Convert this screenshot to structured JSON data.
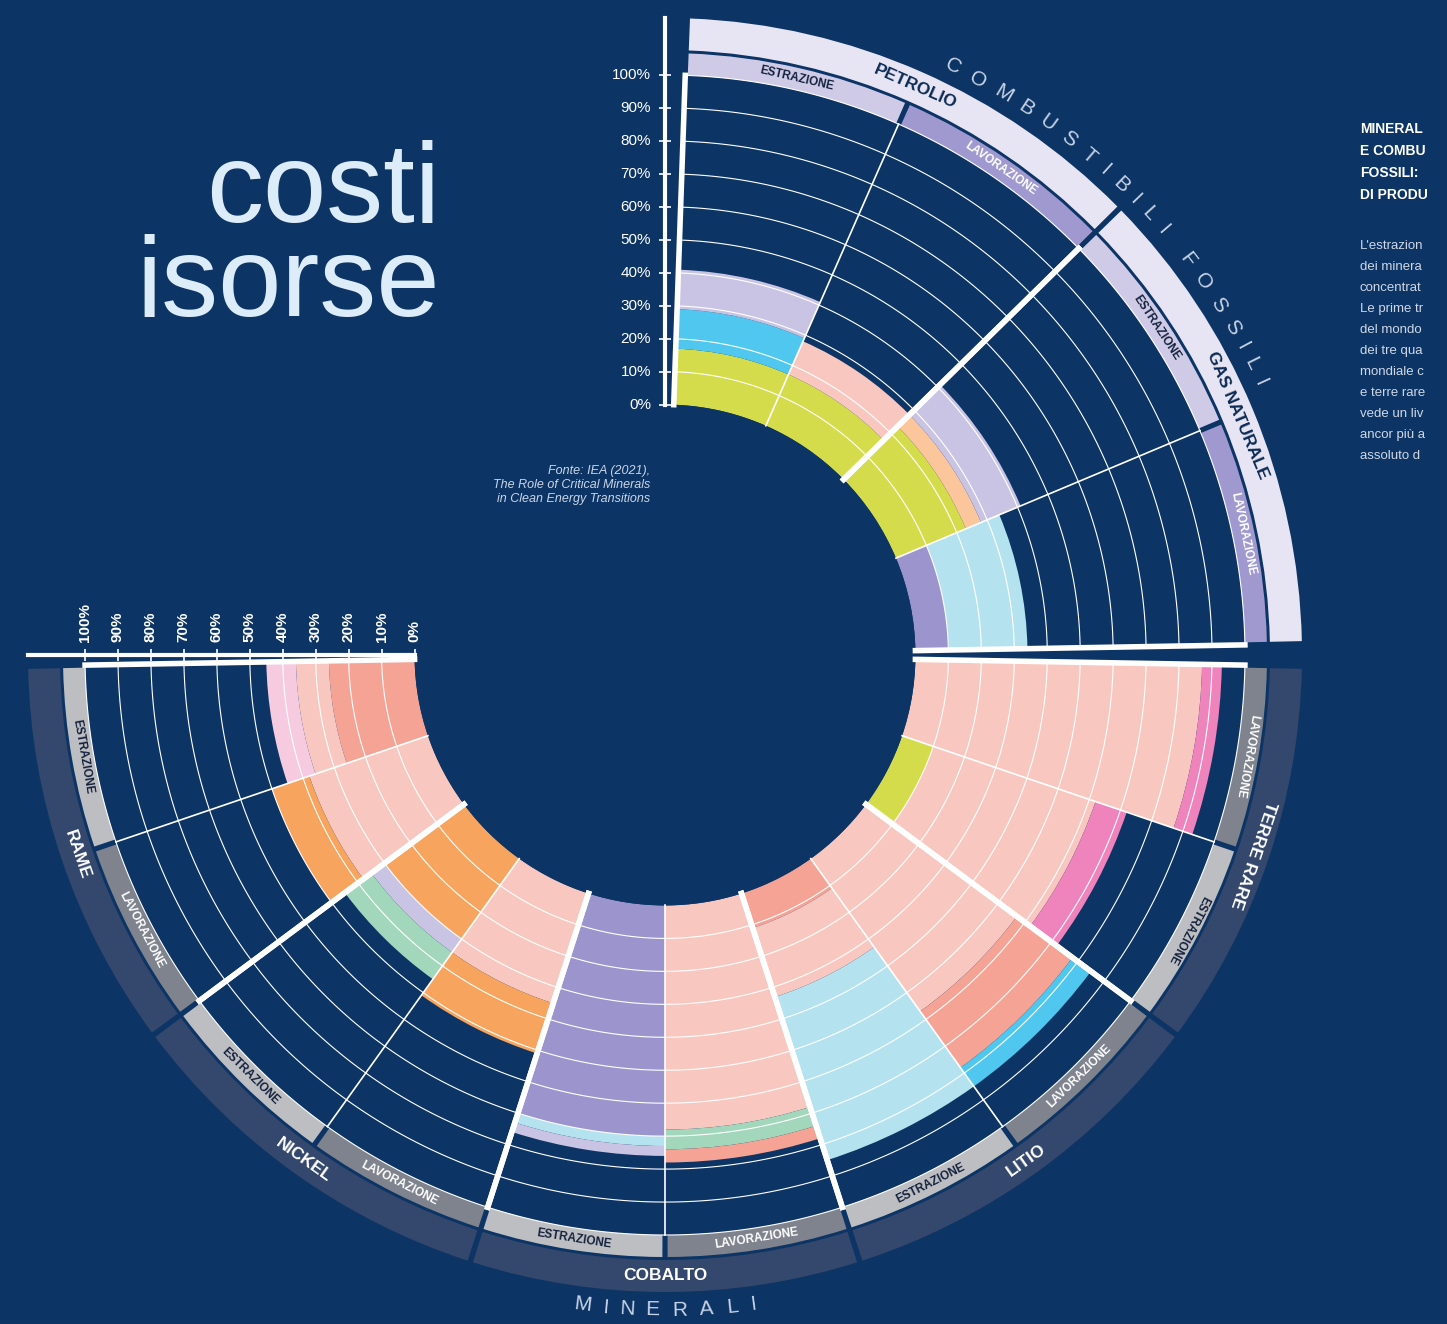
{
  "chart_data": {
    "type": "radial_bar",
    "title": "costi\nisorse",
    "source": "Fonte: IEA (2021),\nThe Role of Critical Minerals\nin Clean Energy Transitions",
    "stacked": true,
    "grid": true,
    "ylim": [
      0,
      100
    ],
    "yticks": [
      {
        "value": 0,
        "label": "0%"
      },
      {
        "value": 10,
        "label": "10%"
      },
      {
        "value": 20,
        "label": "20%"
      },
      {
        "value": 30,
        "label": "30%"
      },
      {
        "value": 40,
        "label": "40%"
      },
      {
        "value": 50,
        "label": "50%"
      },
      {
        "value": 60,
        "label": "60%"
      },
      {
        "value": 70,
        "label": "70%"
      },
      {
        "value": 80,
        "label": "80%"
      },
      {
        "value": 90,
        "label": "90%"
      },
      {
        "value": 100,
        "label": "100%"
      }
    ],
    "groups": [
      {
        "name": "COMBUSTIBILI FOSSILI",
        "resources": [
          {
            "name": "PETROLIO",
            "bars": [
              {
                "name": "ESTRAZIONE",
                "values": [
                  17,
                  12,
                  12
                ],
                "colors": [
                  "#d4dc4c",
                  "#4fc7ee",
                  "#c9c4e4"
                ]
              },
              {
                "name": "LAVORAZIONE",
                "values": [
                  17,
                  11
                ],
                "colors": [
                  "#d4dc4c",
                  "#f8c8c0"
                ]
              }
            ]
          },
          {
            "name": "GAS NATURALE",
            "bars": [
              {
                "name": "ESTRAZIONE",
                "values": [
                  23,
                  5,
                  13
                ],
                "colors": [
                  "#d4dc4c",
                  "#fbc69c",
                  "#c9c4e4"
                ]
              },
              {
                "name": "LAVORAZIONE",
                "values": [
                  10,
                  24
                ],
                "colors": [
                  "#9c95cd",
                  "#b5e2ef"
                ]
              }
            ]
          }
        ]
      },
      {
        "name": "MINERALI",
        "resources": [
          {
            "name": "TERRE RARE",
            "bars": [
              {
                "name": "LAVORAZIONE",
                "values": [
                  87,
                  6
                ],
                "colors": [
                  "#f8c8c0",
                  "#ef83bb"
                ]
              },
              {
                "name": "ESTRAZIONE",
                "values": [
                  10,
                  52,
                  10
                ],
                "colors": [
                  "#d4dc4c",
                  "#f8c8c0",
                  "#ef83bb"
                ]
              }
            ]
          },
          {
            "name": "LITIO",
            "bars": [
              {
                "name": "LAVORAZIONE",
                "values": [
                  57,
                  21,
                  7
                ],
                "colors": [
                  "#f8c8c0",
                  "#f4a394",
                  "#4fc7ee"
                ]
              },
              {
                "name": "ESTRAZIONE",
                "values": [
                  11,
                  22,
                  52
                ],
                "colors": [
                  "#f4a394",
                  "#f8c8c0",
                  "#b5e2ef"
                ]
              }
            ]
          },
          {
            "name": "COBALTO",
            "bars": [
              {
                "name": "LAVORAZIONE",
                "values": [
                  68,
                  6,
                  4
                ],
                "colors": [
                  "#f8c8c0",
                  "#a2d7bb",
                  "#f4a394"
                ]
              },
              {
                "name": "ESTRAZIONE",
                "values": [
                  70,
                  3,
                  3
                ],
                "colors": [
                  "#9c95cd",
                  "#b5e2ef",
                  "#c9c4e4"
                ]
              }
            ]
          },
          {
            "name": "NICKEL",
            "bars": [
              {
                "name": "LAVORAZIONE",
                "values": [
                  35,
                  16
                ],
                "colors": [
                  "#f8c8c0",
                  "#f7a55e"
                ]
              },
              {
                "name": "ESTRAZIONE",
                "values": [
                  30,
                  5,
                  10
                ],
                "colors": [
                  "#f7a55e",
                  "#c9c4e4",
                  "#a2d7bb"
                ]
              }
            ]
          },
          {
            "name": "RAME",
            "bars": [
              {
                "name": "LAVORAZIONE",
                "values": [
                  38,
                  12
                ],
                "colors": [
                  "#f8c8c0",
                  "#f7a55e"
                ]
              },
              {
                "name": "ESTRAZIONE",
                "values": [
                  26,
                  10,
                  9
                ],
                "colors": [
                  "#f4a394",
                  "#f8c8c0",
                  "#f6cbe0"
                ]
              }
            ]
          }
        ]
      }
    ],
    "side_text": {
      "heading": [
        "MINERAL",
        "E COMBU",
        "FOSSILI:",
        "DI PRODU"
      ],
      "body": [
        "L'estrazion",
        "dei minera",
        "concentrat",
        "Le prime tr",
        "del mondo",
        "dei tre qua",
        "mondiale c",
        "e terre rare",
        "vede un liv",
        "ancor più a",
        "assoluto d"
      ]
    }
  }
}
